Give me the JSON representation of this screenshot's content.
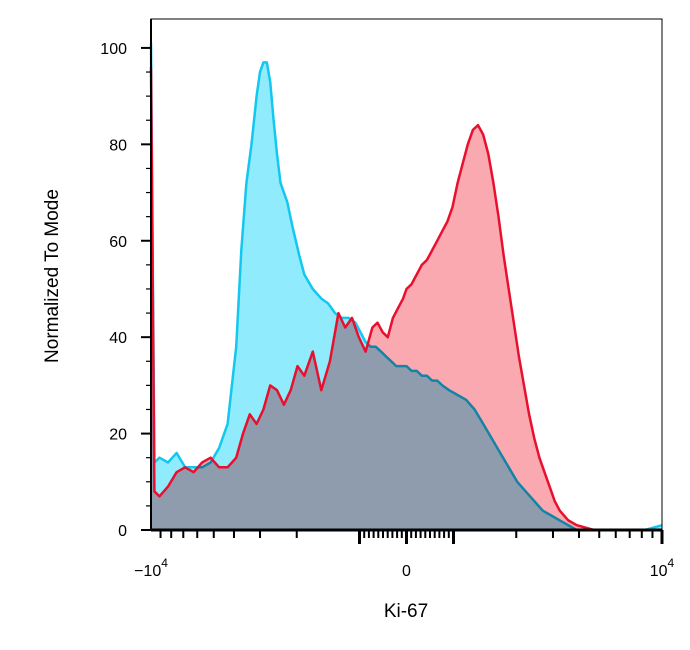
{
  "chart_data": {
    "type": "area",
    "xlabel": "Ki-67",
    "ylabel": "Normalized To Mode",
    "x_scale": "biexponential",
    "xlim": [
      -15000,
      15000
    ],
    "ylim": [
      0,
      106
    ],
    "y_ticks": [
      0,
      20,
      40,
      60,
      80,
      100
    ],
    "x_tick_labels": [
      {
        "value": -10000,
        "base": "−10",
        "exp": "4"
      },
      {
        "value": 0,
        "base": "0",
        "exp": ""
      },
      {
        "value": 10000,
        "base": "10",
        "exp": "4"
      }
    ],
    "series": [
      {
        "color": "#13c7f0",
        "fill": "#7de9fb",
        "x": [
          -15000,
          -14800,
          -14500,
          -14000,
          -13500,
          -13000,
          -12500,
          -12000,
          -11500,
          -11000,
          -10500,
          -10000,
          -9700,
          -9400,
          -9100,
          -8800,
          -8600,
          -8400,
          -8200,
          -8000,
          -7800,
          -7600,
          -7400,
          -7200,
          -7000,
          -6700,
          -6300,
          -6000,
          -5500,
          -5000,
          -4600,
          -4200,
          -3800,
          -3400,
          -3000,
          -2700,
          -2400,
          -2100,
          -1800,
          -1500,
          -1200,
          -900,
          -600,
          -300,
          0,
          300,
          600,
          900,
          1200,
          1500,
          1800,
          2100,
          2500,
          3000,
          3500,
          4000,
          4500,
          5000,
          5500,
          6000,
          6500,
          7000,
          7500,
          8000,
          8500,
          9000,
          9500,
          10000,
          11000,
          12000,
          13000,
          14000,
          15000
        ],
        "values": [
          101,
          14,
          15,
          14,
          16,
          13,
          13,
          13,
          14,
          17,
          22,
          38,
          58,
          72,
          80,
          90,
          95,
          97,
          97,
          93,
          85,
          78,
          72,
          70,
          68,
          63,
          57,
          53,
          50,
          48,
          47,
          45,
          44,
          44,
          43,
          41,
          39,
          38,
          38,
          37,
          36,
          35,
          34,
          34,
          34,
          33,
          33,
          32,
          32,
          31,
          31,
          30,
          29,
          28,
          27,
          25,
          22,
          19,
          16,
          13,
          10,
          8,
          6,
          4,
          3,
          2,
          1,
          0,
          0,
          0,
          0,
          0,
          1
        ]
      },
      {
        "color": "#e8102e",
        "fill": "#fa9aa2",
        "x": [
          -15000,
          -14800,
          -14500,
          -14000,
          -13500,
          -13000,
          -12500,
          -12000,
          -11500,
          -11000,
          -10500,
          -10000,
          -9600,
          -9200,
          -8800,
          -8400,
          -8000,
          -7600,
          -7200,
          -6800,
          -6400,
          -6000,
          -5500,
          -5000,
          -4500,
          -4000,
          -3600,
          -3200,
          -2800,
          -2400,
          -2000,
          -1700,
          -1400,
          -1100,
          -800,
          -500,
          -200,
          0,
          300,
          600,
          900,
          1200,
          1500,
          1800,
          2100,
          2400,
          2700,
          3000,
          3300,
          3600,
          3900,
          4200,
          4500,
          4800,
          5100,
          5400,
          5700,
          6000,
          6300,
          6600,
          6900,
          7200,
          7500,
          7800,
          8100,
          8400,
          8700,
          9000,
          9500,
          10000,
          11000,
          12000,
          13000,
          14000,
          15000
        ],
        "values": [
          96,
          8,
          7,
          9,
          12,
          13,
          12,
          14,
          15,
          13,
          13,
          15,
          20,
          24,
          22,
          25,
          30,
          29,
          26,
          29,
          34,
          32,
          37,
          29,
          35,
          45,
          42,
          44,
          40,
          37,
          42,
          43,
          41,
          40,
          44,
          46,
          48,
          50,
          51,
          53,
          55,
          56,
          58,
          60,
          62,
          64,
          67,
          72,
          76,
          80,
          83,
          84,
          82,
          78,
          72,
          65,
          57,
          50,
          43,
          36,
          30,
          24,
          19,
          15,
          12,
          9,
          6,
          4,
          2,
          1,
          0,
          0,
          0,
          0,
          0
        ]
      }
    ]
  }
}
